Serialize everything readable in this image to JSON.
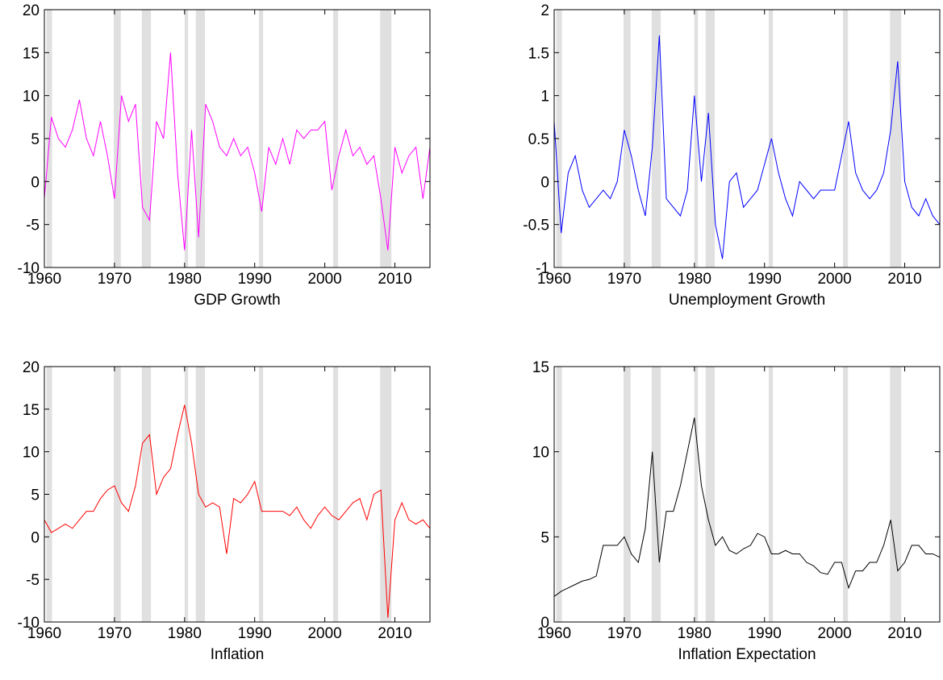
{
  "chart_data": [
    {
      "type": "line",
      "xlabel": "GDP Growth",
      "xlim": [
        1960,
        2015
      ],
      "xticks": [
        1960,
        1970,
        1980,
        1990,
        2000,
        2010
      ],
      "ylim": [
        -10,
        20
      ],
      "yticks": [
        -10,
        -5,
        0,
        5,
        10,
        15,
        20
      ],
      "shaded": [
        [
          1960.3,
          1961.1
        ],
        [
          1969.9,
          1970.9
        ],
        [
          1973.9,
          1975.2
        ],
        [
          1980.0,
          1980.5
        ],
        [
          1981.6,
          1982.9
        ],
        [
          1990.6,
          1991.2
        ],
        [
          2001.2,
          2001.9
        ],
        [
          2007.9,
          2009.5
        ]
      ],
      "x": [
        1960,
        1961,
        1962,
        1963,
        1964,
        1965,
        1966,
        1967,
        1968,
        1969,
        1970,
        1971,
        1972,
        1973,
        1974,
        1975,
        1976,
        1977,
        1978,
        1979,
        1980,
        1981,
        1982,
        1983,
        1984,
        1985,
        1986,
        1987,
        1988,
        1989,
        1990,
        1991,
        1992,
        1993,
        1994,
        1995,
        1996,
        1997,
        1998,
        1999,
        2000,
        2001,
        2002,
        2003,
        2004,
        2005,
        2006,
        2007,
        2008,
        2009,
        2010,
        2011,
        2012,
        2013,
        2014,
        2015
      ],
      "series": [
        {
          "color": "#ff00ff",
          "values": [
            -2,
            7.5,
            5,
            4,
            6,
            9.5,
            5,
            3,
            7,
            3,
            -2,
            10,
            7,
            9,
            -3,
            -4.5,
            7,
            5,
            15,
            1,
            -8,
            6,
            -6.5,
            9,
            7,
            4,
            3,
            5,
            3,
            4,
            1,
            -3.5,
            4,
            2,
            5,
            2,
            6,
            5,
            6,
            6,
            7,
            -1,
            3,
            6,
            3,
            4,
            2,
            3,
            -2,
            -8,
            4,
            1,
            3,
            4,
            -2,
            4
          ]
        }
      ]
    },
    {
      "type": "line",
      "xlabel": "Unemployment Growth",
      "xlim": [
        1960,
        2015
      ],
      "xticks": [
        1960,
        1970,
        1980,
        1990,
        2000,
        2010
      ],
      "ylim": [
        -1,
        2
      ],
      "yticks": [
        -1,
        -0.5,
        0,
        0.5,
        1,
        1.5,
        2
      ],
      "shaded": [
        [
          1960.3,
          1961.1
        ],
        [
          1969.9,
          1970.9
        ],
        [
          1973.9,
          1975.2
        ],
        [
          1980.0,
          1980.5
        ],
        [
          1981.6,
          1982.9
        ],
        [
          1990.6,
          1991.2
        ],
        [
          2001.2,
          2001.9
        ],
        [
          2007.9,
          2009.5
        ]
      ],
      "x": [
        1960,
        1961,
        1962,
        1963,
        1964,
        1965,
        1966,
        1967,
        1968,
        1969,
        1970,
        1971,
        1972,
        1973,
        1974,
        1975,
        1976,
        1977,
        1978,
        1979,
        1980,
        1981,
        1982,
        1983,
        1984,
        1985,
        1986,
        1987,
        1988,
        1989,
        1990,
        1991,
        1992,
        1993,
        1994,
        1995,
        1996,
        1997,
        1998,
        1999,
        2000,
        2001,
        2002,
        2003,
        2004,
        2005,
        2006,
        2007,
        2008,
        2009,
        2010,
        2011,
        2012,
        2013,
        2014,
        2015
      ],
      "series": [
        {
          "color": "#0000ff",
          "values": [
            0.7,
            -0.6,
            0.1,
            0.3,
            -0.1,
            -0.3,
            -0.2,
            -0.1,
            -0.2,
            0,
            0.6,
            0.3,
            -0.1,
            -0.4,
            0.4,
            1.7,
            -0.2,
            -0.3,
            -0.4,
            -0.1,
            1.0,
            0,
            0.8,
            -0.5,
            -0.9,
            0,
            0.1,
            -0.3,
            -0.2,
            -0.1,
            0.2,
            0.5,
            0.1,
            -0.2,
            -0.4,
            0,
            -0.1,
            -0.2,
            -0.1,
            -0.1,
            -0.1,
            0.3,
            0.7,
            0.1,
            -0.1,
            -0.2,
            -0.1,
            0.1,
            0.6,
            1.4,
            0,
            -0.3,
            -0.4,
            -0.2,
            -0.4,
            -0.5
          ]
        }
      ]
    },
    {
      "type": "line",
      "xlabel": "Inflation",
      "xlim": [
        1960,
        2015
      ],
      "xticks": [
        1960,
        1970,
        1980,
        1990,
        2000,
        2010
      ],
      "ylim": [
        -10,
        20
      ],
      "yticks": [
        -10,
        -5,
        0,
        5,
        10,
        15,
        20
      ],
      "shaded": [
        [
          1960.3,
          1961.1
        ],
        [
          1969.9,
          1970.9
        ],
        [
          1973.9,
          1975.2
        ],
        [
          1980.0,
          1980.5
        ],
        [
          1981.6,
          1982.9
        ],
        [
          1990.6,
          1991.2
        ],
        [
          2001.2,
          2001.9
        ],
        [
          2007.9,
          2009.5
        ]
      ],
      "x": [
        1960,
        1961,
        1962,
        1963,
        1964,
        1965,
        1966,
        1967,
        1968,
        1969,
        1970,
        1971,
        1972,
        1973,
        1974,
        1975,
        1976,
        1977,
        1978,
        1979,
        1980,
        1981,
        1982,
        1983,
        1984,
        1985,
        1986,
        1987,
        1988,
        1989,
        1990,
        1991,
        1992,
        1993,
        1994,
        1995,
        1996,
        1997,
        1998,
        1999,
        2000,
        2001,
        2002,
        2003,
        2004,
        2005,
        2006,
        2007,
        2008,
        2009,
        2010,
        2011,
        2012,
        2013,
        2014,
        2015
      ],
      "series": [
        {
          "color": "#ff0000",
          "values": [
            2,
            0.5,
            1,
            1.5,
            1,
            2,
            3,
            3,
            4.5,
            5.5,
            6,
            4,
            3,
            6,
            11,
            12,
            5,
            7,
            8,
            12,
            15.5,
            11,
            5,
            3.5,
            4,
            3.5,
            -2,
            4.5,
            4,
            5,
            6.5,
            3,
            3,
            3,
            3,
            2.5,
            3.5,
            2,
            1,
            2.5,
            3.5,
            2.5,
            2,
            3,
            4,
            4.5,
            2,
            5,
            5.5,
            -9.5,
            2,
            4,
            2,
            1.5,
            2,
            1
          ]
        }
      ]
    },
    {
      "type": "line",
      "xlabel": "Inflation Expectation",
      "xlim": [
        1960,
        2015
      ],
      "xticks": [
        1960,
        1970,
        1980,
        1990,
        2000,
        2010
      ],
      "ylim": [
        0,
        15
      ],
      "yticks": [
        0,
        5,
        10,
        15
      ],
      "shaded": [
        [
          1960.3,
          1961.1
        ],
        [
          1969.9,
          1970.9
        ],
        [
          1973.9,
          1975.2
        ],
        [
          1980.0,
          1980.5
        ],
        [
          1981.6,
          1982.9
        ],
        [
          1990.6,
          1991.2
        ],
        [
          2001.2,
          2001.9
        ],
        [
          2007.9,
          2009.5
        ]
      ],
      "x": [
        1960,
        1961,
        1962,
        1963,
        1964,
        1965,
        1966,
        1967,
        1968,
        1969,
        1970,
        1971,
        1972,
        1973,
        1974,
        1975,
        1976,
        1977,
        1978,
        1979,
        1980,
        1981,
        1982,
        1983,
        1984,
        1985,
        1986,
        1987,
        1988,
        1989,
        1990,
        1991,
        1992,
        1993,
        1994,
        1995,
        1996,
        1997,
        1998,
        1999,
        2000,
        2001,
        2002,
        2003,
        2004,
        2005,
        2006,
        2007,
        2008,
        2009,
        2010,
        2011,
        2012,
        2013,
        2014,
        2015
      ],
      "series": [
        {
          "color": "#000000",
          "values": [
            1.5,
            1.8,
            2,
            2.2,
            2.4,
            2.5,
            2.7,
            4.5,
            4.5,
            4.5,
            5,
            4,
            3.5,
            5.5,
            10,
            3.5,
            6.5,
            6.5,
            8,
            10,
            12,
            8,
            6,
            4.5,
            5,
            4.2,
            4,
            4.3,
            4.5,
            5.2,
            5,
            4,
            4,
            4.2,
            4,
            4,
            3.5,
            3.3,
            2.9,
            2.8,
            3.5,
            3.5,
            2,
            3,
            3,
            3.5,
            3.5,
            4.5,
            6,
            3,
            3.5,
            4.5,
            4.5,
            4,
            4,
            3.8
          ]
        }
      ]
    }
  ]
}
